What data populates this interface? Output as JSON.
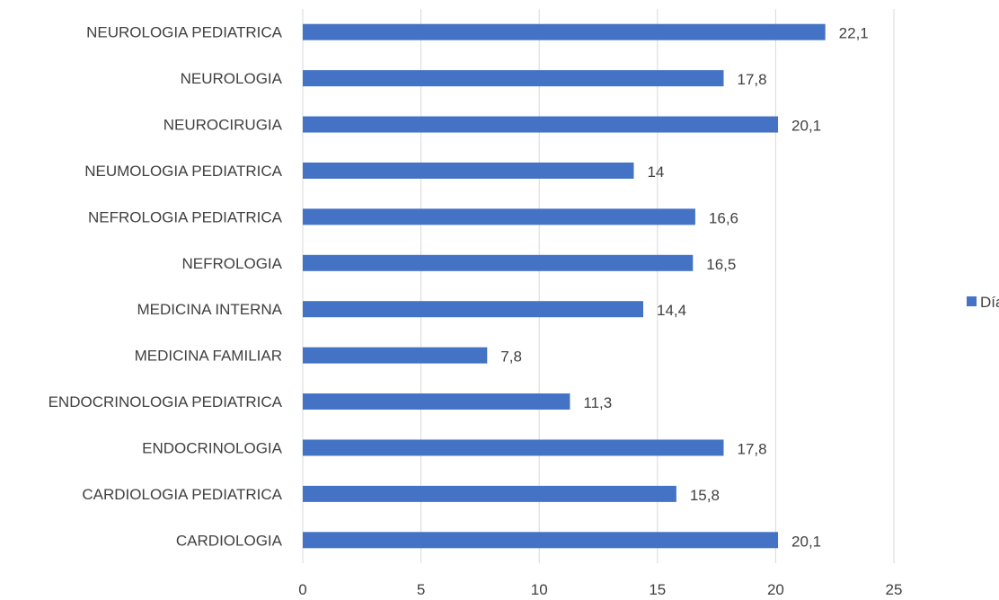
{
  "chart_data": {
    "type": "bar",
    "orientation": "horizontal",
    "categories": [
      "CARDIOLOGIA",
      "CARDIOLOGIA PEDIATRICA",
      "ENDOCRINOLOGIA",
      "ENDOCRINOLOGIA PEDIATRICA",
      "MEDICINA FAMILIAR",
      "MEDICINA INTERNA",
      "NEFROLOGIA",
      "NEFROLOGIA PEDIATRICA",
      "NEUMOLOGIA PEDIATRICA",
      "NEUROCIRUGIA",
      "NEUROLOGIA",
      "NEUROLOGIA PEDIATRICA"
    ],
    "series": [
      {
        "name": "Días",
        "values": [
          20.1,
          15.8,
          17.8,
          11.3,
          7.8,
          14.4,
          16.5,
          16.6,
          14,
          20.1,
          17.8,
          22.1
        ],
        "labels": [
          "20,1",
          "15,8",
          "17,8",
          "11,3",
          "7,8",
          "14,4",
          "16,5",
          "16,6",
          "14",
          "20,1",
          "17,8",
          "22,1"
        ],
        "color": "#4472C4"
      }
    ],
    "xlim": [
      0,
      25
    ],
    "xticks": [
      "0",
      "5",
      "10",
      "15",
      "20",
      "25"
    ],
    "grid": true,
    "legend_position": "right",
    "title": "",
    "xlabel": "",
    "ylabel": ""
  }
}
